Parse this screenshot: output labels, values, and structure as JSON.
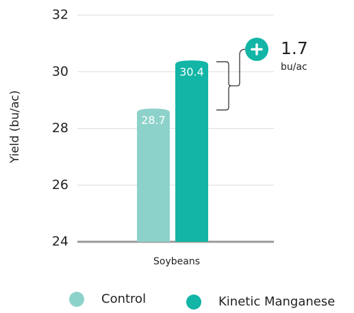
{
  "chart_data": {
    "type": "bar",
    "y_label": "Yield (bu/ac)",
    "categories": [
      "Soybeans"
    ],
    "series": [
      {
        "name": "Control",
        "color": "#8dd2ca",
        "values": [
          28.7
        ]
      },
      {
        "name": "Kinetic Manganese",
        "color": "#12b5a6",
        "values": [
          30.4
        ]
      }
    ],
    "ylim": [
      24,
      32
    ],
    "yticks": [
      24,
      26,
      28,
      30,
      32
    ],
    "grid": true,
    "legend": "bottom",
    "annotation": {
      "value": "1.7",
      "unit": "bu/ac"
    }
  }
}
